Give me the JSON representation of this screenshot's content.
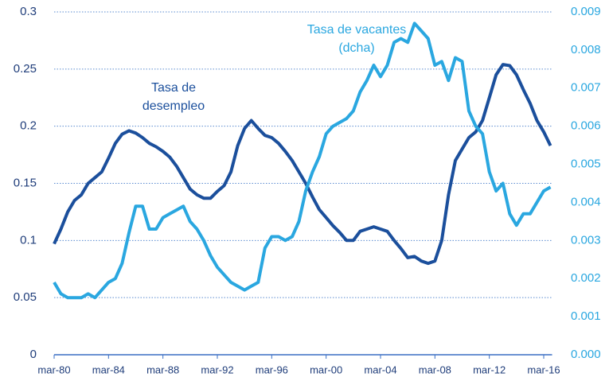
{
  "chart_data": {
    "type": "line",
    "categories": [
      "mar-80",
      null,
      null,
      null,
      null,
      null,
      null,
      null,
      "mar-84",
      null,
      null,
      null,
      null,
      null,
      null,
      null,
      "mar-88",
      null,
      null,
      null,
      null,
      null,
      null,
      null,
      "mar-92",
      null,
      null,
      null,
      null,
      null,
      null,
      null,
      "mar-96",
      null,
      null,
      null,
      null,
      null,
      null,
      null,
      "mar-00",
      null,
      null,
      null,
      null,
      null,
      null,
      null,
      "mar-04",
      null,
      null,
      null,
      null,
      null,
      null,
      null,
      "mar-08",
      null,
      null,
      null,
      null,
      null,
      null,
      null,
      "mar-12",
      null,
      null,
      null,
      null,
      null,
      null,
      null,
      "mar-16",
      null
    ],
    "series": [
      {
        "color": "#1b4f9c",
        "axis": "y",
        "values": [
          0.097,
          0.11,
          0.125,
          0.135,
          0.14,
          0.15,
          0.155,
          0.16,
          0.172,
          0.185,
          0.193,
          0.196,
          0.194,
          0.19,
          0.185,
          0.182,
          0.178,
          0.173,
          0.165,
          0.155,
          0.145,
          0.14,
          0.137,
          0.137,
          0.143,
          0.148,
          0.16,
          0.183,
          0.198,
          0.205,
          0.198,
          0.192,
          0.19,
          0.185,
          0.178,
          0.17,
          0.16,
          0.15,
          0.138,
          0.127,
          0.12,
          0.113,
          0.107,
          0.1,
          0.1,
          0.108,
          0.11,
          0.112,
          0.11,
          0.108,
          0.1,
          0.093,
          0.085,
          0.086,
          0.082,
          0.08,
          0.082,
          0.1,
          0.14,
          0.17,
          0.18,
          0.19,
          0.195,
          0.205,
          0.225,
          0.245,
          0.254,
          0.253,
          0.245,
          0.232,
          0.22,
          0.205,
          0.195,
          0.183
        ]
      },
      {
        "color": "#2aa7e0",
        "axis": "y2",
        "values": [
          0.0019,
          0.0016,
          0.0015,
          0.0015,
          0.0015,
          0.0016,
          0.0015,
          0.0017,
          0.0019,
          0.002,
          0.0024,
          0.0032,
          0.0039,
          0.0039,
          0.0033,
          0.0033,
          0.0036,
          0.0037,
          0.0038,
          0.0039,
          0.0035,
          0.0033,
          0.003,
          0.0026,
          0.0023,
          0.0021,
          0.0019,
          0.0018,
          0.0017,
          0.0018,
          0.0019,
          0.0028,
          0.0031,
          0.0031,
          0.003,
          0.0031,
          0.0035,
          0.0043,
          0.0048,
          0.0052,
          0.0058,
          0.006,
          0.0061,
          0.0062,
          0.0064,
          0.0069,
          0.0072,
          0.0076,
          0.0073,
          0.0076,
          0.0082,
          0.0083,
          0.0082,
          0.0087,
          0.0085,
          0.0083,
          0.0076,
          0.0077,
          0.0072,
          0.0078,
          0.0077,
          0.0064,
          0.006,
          0.0058,
          0.0048,
          0.0043,
          0.0045,
          0.0037,
          0.0034,
          0.0037,
          0.0037,
          0.004,
          0.0043,
          0.0044
        ]
      }
    ],
    "annotations": [
      {
        "lines": [
          "Tasa de",
          "desempleo"
        ],
        "color": "#1b4f9c",
        "x": 11,
        "series": 0
      },
      {
        "lines": [
          "Tasa de vacantes",
          "(dcha)"
        ],
        "color": "#2aa7e0",
        "x": 45,
        "series": 1
      }
    ],
    "ylim": [
      0,
      0.3
    ],
    "yticks": [
      0,
      0.05,
      0.1,
      0.15,
      0.2,
      0.25,
      0.3
    ],
    "y2lim": [
      0,
      0.009
    ],
    "y2ticks": [
      {
        "value": 0,
        "label": "0.000"
      },
      {
        "value": 0.001,
        "label": "0.001"
      },
      {
        "value": 0.002,
        "label": "0.002"
      },
      {
        "value": 0.003,
        "label": "0.003"
      },
      {
        "value": 0.004,
        "label": "0.004"
      },
      {
        "value": 0.005,
        "label": "0.005"
      },
      {
        "value": 0.006,
        "label": "0.006"
      },
      {
        "value": 0.007,
        "label": "0.007"
      },
      {
        "value": 0.008,
        "label": "0.008"
      },
      {
        "value": 0.009,
        "label": "0.009"
      }
    ],
    "grid": true
  }
}
